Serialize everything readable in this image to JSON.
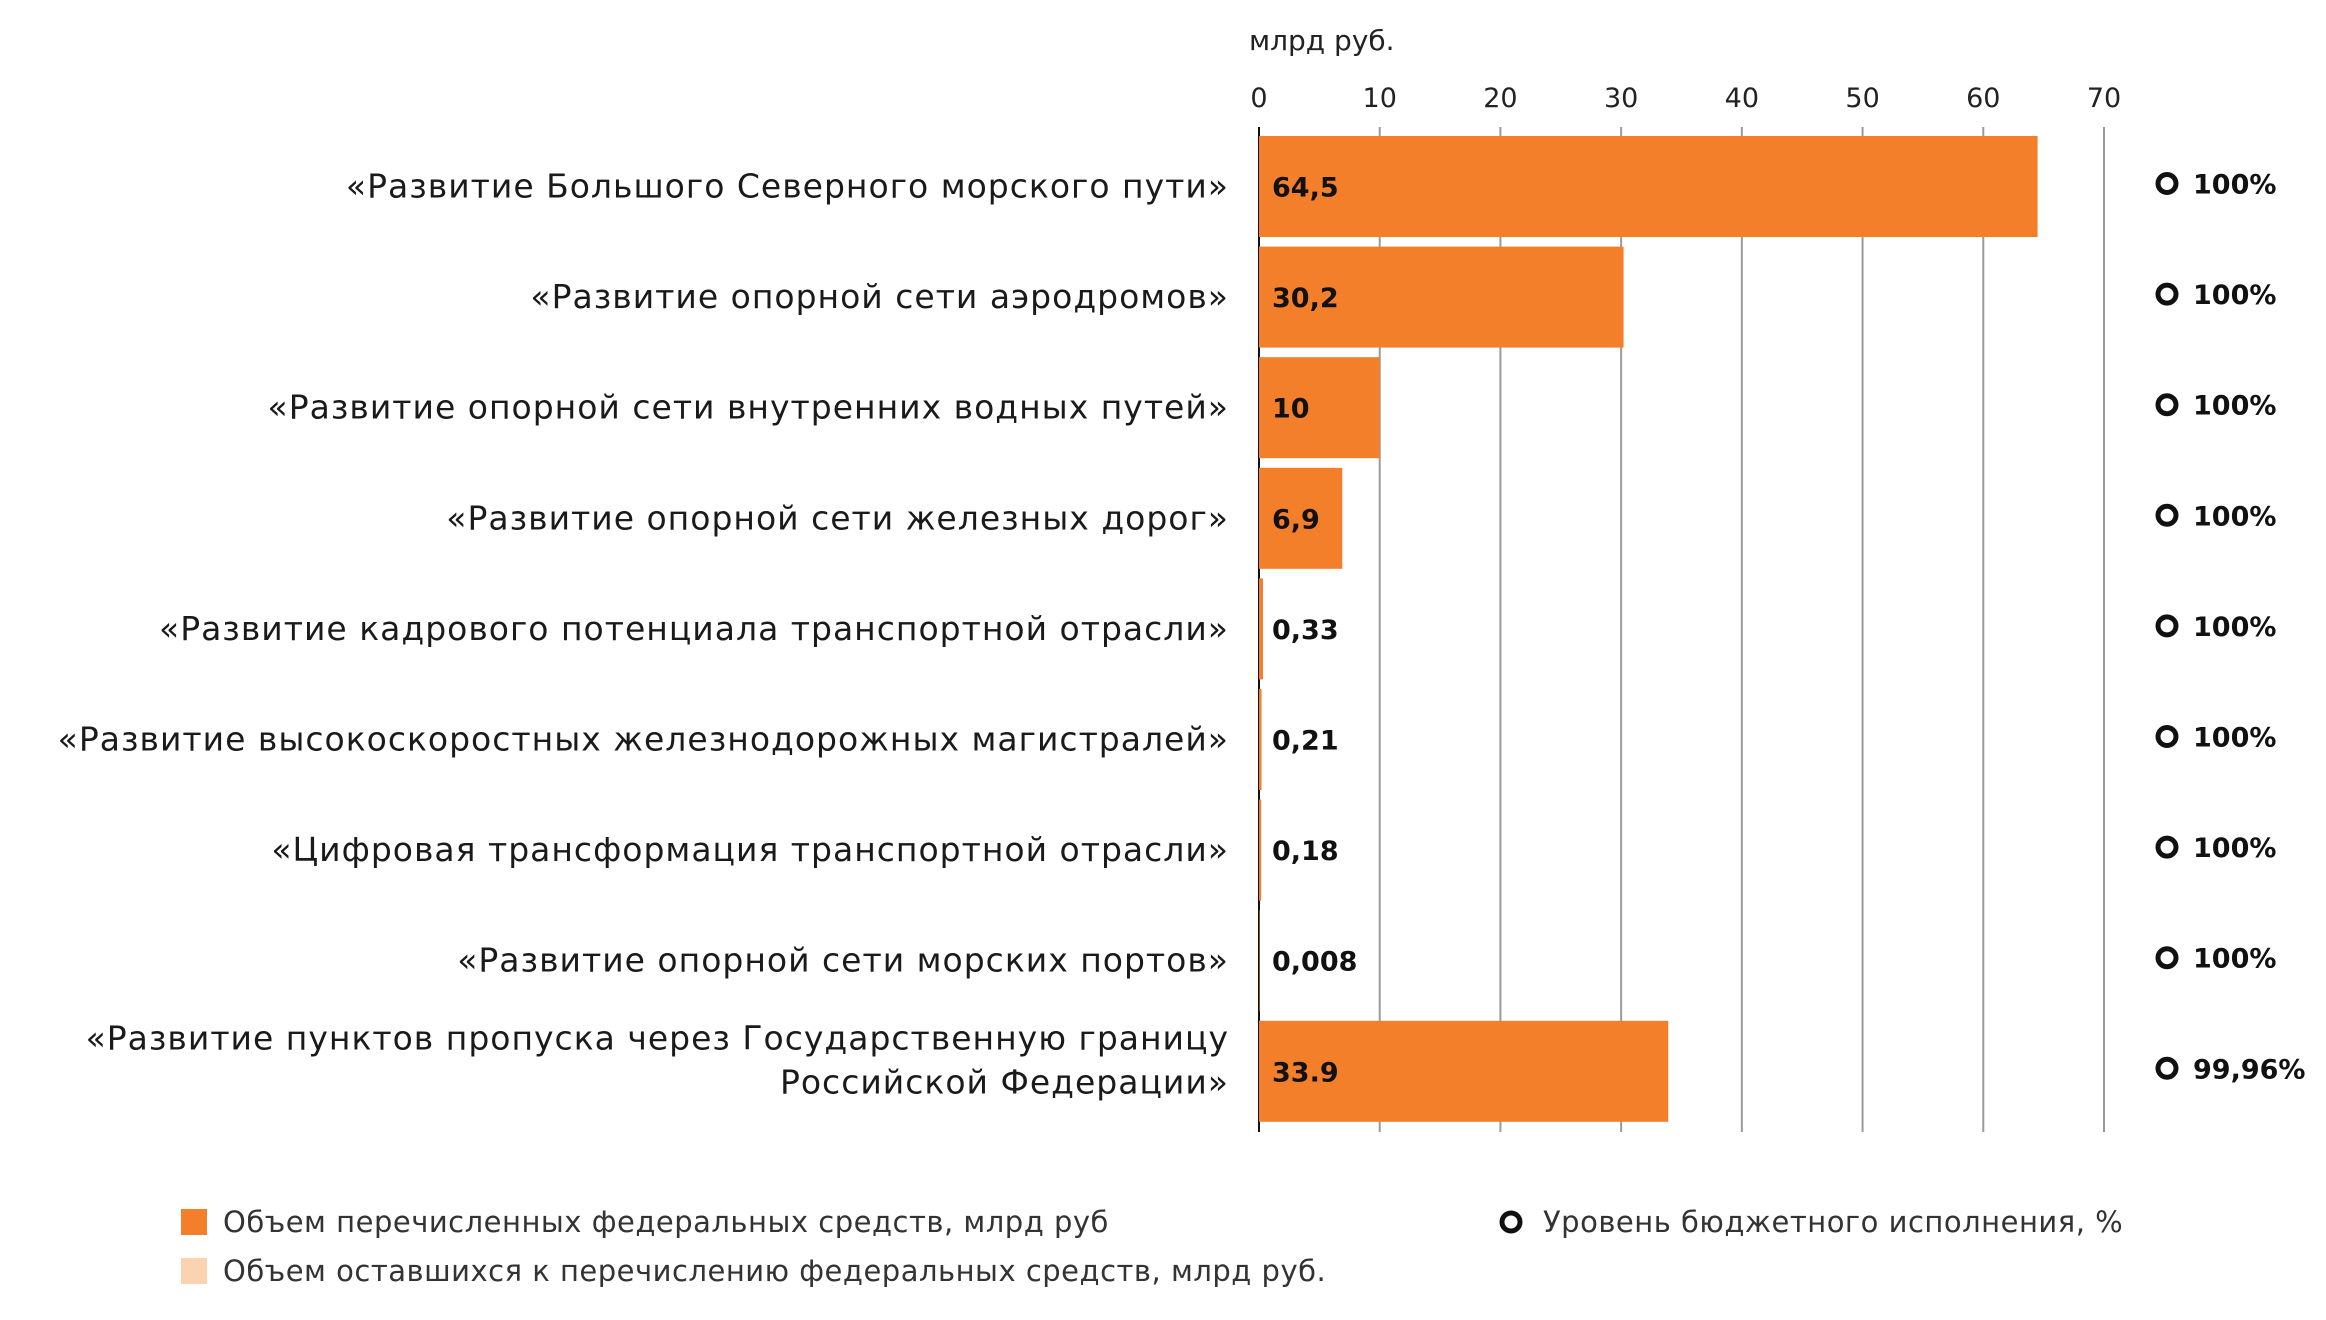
{
  "chart_data": {
    "type": "bar",
    "orientation": "horizontal",
    "unit_label": "млрд руб.",
    "xlim": [
      0,
      70
    ],
    "x_ticks": [
      "0",
      "10",
      "20",
      "30",
      "40",
      "50",
      "60",
      "70"
    ],
    "grid": true,
    "categories": [
      [
        "«Развитие Большого Северного морского пути»"
      ],
      [
        "«Развитие опорной сети аэродромов»"
      ],
      [
        "«Развитие опорной сети внутренних водных путей»"
      ],
      [
        "«Развитие опорной сети железных дорог»"
      ],
      [
        "«Развитие кадрового потенциала транспортной отрасли»"
      ],
      [
        "«Развитие высокоскоростных железнодорожных магистралей»"
      ],
      [
        "«Цифровая трансформация транспортной отрасли»"
      ],
      [
        "«Развитие опорной сети морских портов»"
      ],
      [
        "«Развитие пунктов пропуска через Государственную границу",
        "Российской Федерации»"
      ]
    ],
    "series": [
      {
        "name": "Объем перечисленных федеральных средств, млрд руб",
        "color": "#F47F2B",
        "values": [
          64.5,
          30.2,
          10,
          6.9,
          0.33,
          0.21,
          0.18,
          0.008,
          33.9
        ],
        "labels": [
          "64,5",
          "30,2",
          "10",
          "6,9",
          "0,33",
          "0,21",
          "0,18",
          "0,008",
          "33.9"
        ]
      },
      {
        "name": "Объем оставшихся к перечислению федеральных средств, млрд руб.",
        "color": "#FBD3B0",
        "values": [
          0,
          0,
          0,
          0,
          0,
          0,
          0,
          0,
          0
        ]
      }
    ],
    "budget_execution": {
      "name": "Уровень бюджетного исполнения, %",
      "labels": [
        "100%",
        "100%",
        "100%",
        "100%",
        "100%",
        "100%",
        "100%",
        "100%",
        "99,96%"
      ]
    },
    "legend_position": "bottom"
  }
}
